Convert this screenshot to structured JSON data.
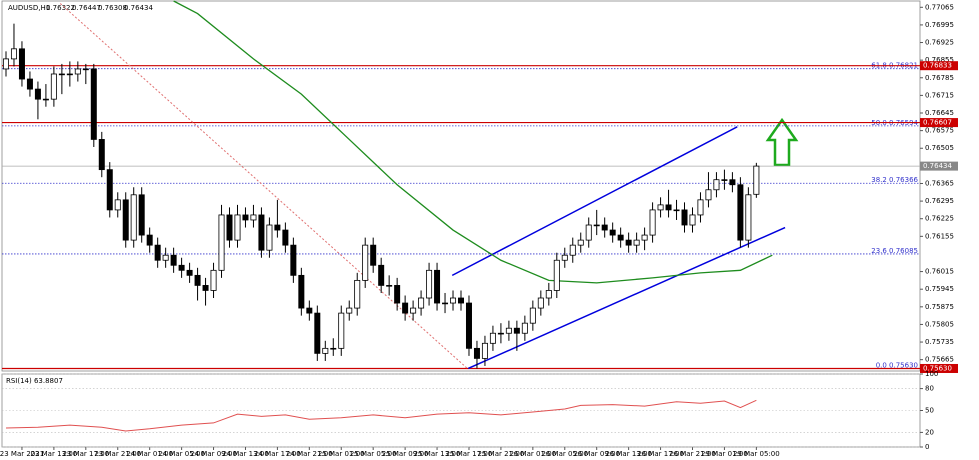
{
  "chart_data": {
    "type": "candlestick",
    "symbol": "AUDUSD,H1",
    "open": [
      0.7682,
      0.7686,
      0.769,
      0.7678,
      0.7674,
      0.767,
      0.767,
      0.768,
      0.768,
      0.768,
      0.7682,
      0.7682,
      0.7654,
      0.7642,
      0.7626,
      0.763,
      0.7614,
      0.7632,
      0.7616,
      0.7612,
      0.7606,
      0.7608,
      0.7604,
      0.7602,
      0.76,
      0.7596,
      0.7594,
      0.7602,
      0.7624,
      0.7614,
      0.7624,
      0.7622,
      0.7624,
      0.761,
      0.762,
      0.7618,
      0.7612,
      0.76,
      0.7587,
      0.7585,
      0.7569,
      0.7571,
      0.7571,
      0.7585,
      0.7587,
      0.7598,
      0.7612,
      0.7604,
      0.7596,
      0.7596,
      0.7589,
      0.7585,
      0.7587,
      0.7591,
      0.7602,
      0.7589,
      0.7589,
      0.7591,
      0.7589,
      0.7571,
      0.7567,
      0.7573,
      0.7577,
      0.7577,
      0.7579,
      0.7577,
      0.7581,
      0.7587,
      0.7591,
      0.7594,
      0.7606,
      0.7608,
      0.7612,
      0.7614,
      0.762,
      0.762,
      0.7618,
      0.7616,
      0.7614,
      0.7612,
      0.7614,
      0.7616,
      0.7626,
      0.7628,
      0.7626,
      0.7626,
      0.762,
      0.7624,
      0.763,
      0.7634,
      0.7638,
      0.7638,
      0.7636,
      0.7614,
      0.76322
    ],
    "high": [
      0.7689,
      0.77,
      0.7693,
      0.7681,
      0.7677,
      0.7676,
      0.7683,
      0.7684,
      0.7685,
      0.7685,
      0.7684,
      0.7684,
      0.7657,
      0.7645,
      0.7633,
      0.7633,
      0.7635,
      0.7635,
      0.7619,
      0.7615,
      0.7611,
      0.7611,
      0.7607,
      0.7605,
      0.7603,
      0.7599,
      0.7605,
      0.7628,
      0.7627,
      0.7628,
      0.7627,
      0.7628,
      0.7627,
      0.7623,
      0.763,
      0.7621,
      0.7615,
      0.7603,
      0.759,
      0.7588,
      0.7574,
      0.7575,
      0.7588,
      0.759,
      0.7601,
      0.7615,
      0.7615,
      0.7607,
      0.76,
      0.7599,
      0.7592,
      0.759,
      0.7594,
      0.7605,
      0.7605,
      0.7593,
      0.7594,
      0.7594,
      0.7592,
      0.7574,
      0.7576,
      0.758,
      0.7581,
      0.7582,
      0.7582,
      0.7584,
      0.759,
      0.7594,
      0.7597,
      0.7609,
      0.7611,
      0.7615,
      0.7617,
      0.7623,
      0.7626,
      0.7623,
      0.7621,
      0.7619,
      0.7617,
      0.7617,
      0.7619,
      0.7629,
      0.7631,
      0.7634,
      0.763,
      0.7629,
      0.7627,
      0.7633,
      0.7641,
      0.7641,
      0.7642,
      0.7641,
      0.7639,
      0.7635,
      0.76447
    ],
    "low": [
      0.7679,
      0.7683,
      0.7675,
      0.7671,
      0.7662,
      0.7667,
      0.7667,
      0.7672,
      0.7675,
      0.7677,
      0.7676,
      0.7651,
      0.7639,
      0.7623,
      0.7623,
      0.7611,
      0.7611,
      0.7613,
      0.7609,
      0.7603,
      0.7603,
      0.7601,
      0.7599,
      0.7597,
      0.759,
      0.7588,
      0.7591,
      0.7599,
      0.7611,
      0.7611,
      0.7619,
      0.7619,
      0.7607,
      0.7607,
      0.7615,
      0.7609,
      0.7597,
      0.7584,
      0.7582,
      0.7566,
      0.7566,
      0.7568,
      0.7568,
      0.7582,
      0.7584,
      0.7595,
      0.7601,
      0.7593,
      0.7592,
      0.7586,
      0.7582,
      0.7582,
      0.7584,
      0.7588,
      0.7586,
      0.7585,
      0.7586,
      0.7586,
      0.7568,
      0.7563,
      0.7564,
      0.757,
      0.7573,
      0.7574,
      0.757,
      0.7574,
      0.7578,
      0.7584,
      0.7588,
      0.7591,
      0.7603,
      0.7605,
      0.7609,
      0.7611,
      0.7616,
      0.7615,
      0.7613,
      0.7611,
      0.7609,
      0.7609,
      0.761,
      0.7613,
      0.7623,
      0.7623,
      0.7622,
      0.7617,
      0.7617,
      0.7621,
      0.7627,
      0.7631,
      0.7634,
      0.7633,
      0.7611,
      0.7611,
      0.76308
    ],
    "close": [
      0.7686,
      0.769,
      0.7678,
      0.7674,
      0.767,
      0.767,
      0.768,
      0.768,
      0.768,
      0.7682,
      0.7682,
      0.7654,
      0.7642,
      0.7626,
      0.763,
      0.7614,
      0.7632,
      0.7616,
      0.7612,
      0.7606,
      0.7608,
      0.7604,
      0.7602,
      0.76,
      0.7596,
      0.7594,
      0.7602,
      0.7624,
      0.7614,
      0.7624,
      0.7622,
      0.7624,
      0.761,
      0.762,
      0.7618,
      0.7612,
      0.76,
      0.7587,
      0.7585,
      0.7569,
      0.7571,
      0.7571,
      0.7585,
      0.7587,
      0.7598,
      0.7612,
      0.7604,
      0.7596,
      0.7596,
      0.7589,
      0.7585,
      0.7587,
      0.7591,
      0.7602,
      0.7589,
      0.7589,
      0.7591,
      0.7589,
      0.7571,
      0.7567,
      0.7573,
      0.7577,
      0.7577,
      0.7579,
      0.7577,
      0.7581,
      0.7587,
      0.7591,
      0.7594,
      0.7606,
      0.7608,
      0.7612,
      0.7614,
      0.762,
      0.762,
      0.7618,
      0.7616,
      0.7614,
      0.7612,
      0.7614,
      0.7616,
      0.7626,
      0.7628,
      0.7626,
      0.7626,
      0.762,
      0.7624,
      0.763,
      0.7634,
      0.7638,
      0.7638,
      0.7636,
      0.7614,
      0.7632,
      0.76434
    ],
    "xlim": [
      -0.5,
      114.5
    ],
    "ylim": [
      0.7562,
      0.7709
    ],
    "yticks": [
      0.77065,
      0.76995,
      0.76925,
      0.76855,
      0.76785,
      0.76715,
      0.76645,
      0.76575,
      0.76505,
      0.76365,
      0.76295,
      0.76225,
      0.76155,
      0.76015,
      0.75945,
      0.75875,
      0.75805,
      0.75735,
      0.75665
    ],
    "xticks": [
      {
        "value": 2,
        "label": "23 Mar 2021"
      },
      {
        "value": 6,
        "label": "23 Mar 13:00"
      },
      {
        "value": 10,
        "label": "23 Mar 17:00"
      },
      {
        "value": 14,
        "label": "23 Mar 21:00"
      },
      {
        "value": 18,
        "label": "24 Mar 01:00"
      },
      {
        "value": 22,
        "label": "24 Mar 05:00"
      },
      {
        "value": 26,
        "label": "24 Mar 09:00"
      },
      {
        "value": 30,
        "label": "24 Mar 13:00"
      },
      {
        "value": 34,
        "label": "24 Mar 17:00"
      },
      {
        "value": 38,
        "label": "24 Mar 21:00"
      },
      {
        "value": 42,
        "label": "25 Mar 01:00"
      },
      {
        "value": 46,
        "label": "25 Mar 05:00"
      },
      {
        "value": 50,
        "label": "25 Mar 09:00"
      },
      {
        "value": 54,
        "label": "25 Mar 13:00"
      },
      {
        "value": 58,
        "label": "25 Mar 17:00"
      },
      {
        "value": 62,
        "label": "25 Mar 21:00"
      },
      {
        "value": 66,
        "label": "26 Mar 01:00"
      },
      {
        "value": 70,
        "label": "26 Mar 05:00"
      },
      {
        "value": 74,
        "label": "26 Mar 09:00"
      },
      {
        "value": 78,
        "label": "26 Mar 13:00"
      },
      {
        "value": 82,
        "label": "26 Mar 17:00"
      },
      {
        "value": 86,
        "label": "26 Mar 21:00"
      },
      {
        "value": 90,
        "label": "29 Mar 01:00"
      },
      {
        "value": 94,
        "label": "29 Mar 05:00"
      }
    ],
    "fib_levels": [
      {
        "value": 0.76821,
        "label": "61.8 0.76821"
      },
      {
        "value": 0.76594,
        "label": "50.0 0.76594"
      },
      {
        "value": 0.76366,
        "label": "38.2 0.76366"
      },
      {
        "value": 0.76085,
        "label": "23.6 0.76085"
      },
      {
        "value": 0.7563,
        "label": "0.0 0.75630"
      }
    ],
    "fib_color": "#3333cc",
    "levels": [
      0.76833,
      0.76607,
      {
        "value": 0.7563,
        "label": "0.75630"
      }
    ],
    "level_color": "#cc0000",
    "moving_average": {
      "color": "#1e8c1e",
      "x": [
        21,
        24,
        31,
        37,
        43,
        49,
        56,
        62,
        68,
        74,
        81,
        87,
        92,
        96
      ],
      "values": [
        0.7709,
        0.7704,
        0.7686,
        0.7672,
        0.7654,
        0.7636,
        0.7618,
        0.7606,
        0.7598,
        0.7597,
        0.7599,
        0.7601,
        0.7602,
        0.7608
      ]
    },
    "trendlines": [
      {
        "color": "#e07070",
        "dash": true,
        "x": [
          6.8,
          57.8
        ],
        "y": [
          0.7708,
          0.7563
        ]
      },
      {
        "color": "#0000dd",
        "dash": false,
        "x": [
          55.9,
          91.6
        ],
        "y": [
          0.76,
          0.7659
        ]
      },
      {
        "color": "#0000dd",
        "dash": false,
        "x": [
          57.9,
          97.6
        ],
        "y": [
          0.7563,
          0.7619
        ]
      }
    ],
    "rsi": {
      "label": "RSI(14) 63.8807",
      "color": "#e05050",
      "ylim": [
        0,
        100
      ],
      "yticks": [
        0,
        20,
        50,
        80,
        100
      ],
      "x": [
        0,
        4,
        8,
        12,
        15,
        18,
        22,
        26,
        29,
        32,
        35,
        38,
        42,
        46,
        50,
        54,
        58,
        62,
        66,
        70,
        72,
        76,
        80,
        84,
        87,
        90,
        92,
        94
      ],
      "values": [
        26,
        27,
        30,
        27,
        22,
        25,
        30,
        33,
        45,
        42,
        44,
        38,
        40,
        44,
        40,
        45,
        47,
        44,
        48,
        52,
        57,
        58,
        56,
        62,
        60,
        63,
        54,
        64
      ]
    }
  }
}
